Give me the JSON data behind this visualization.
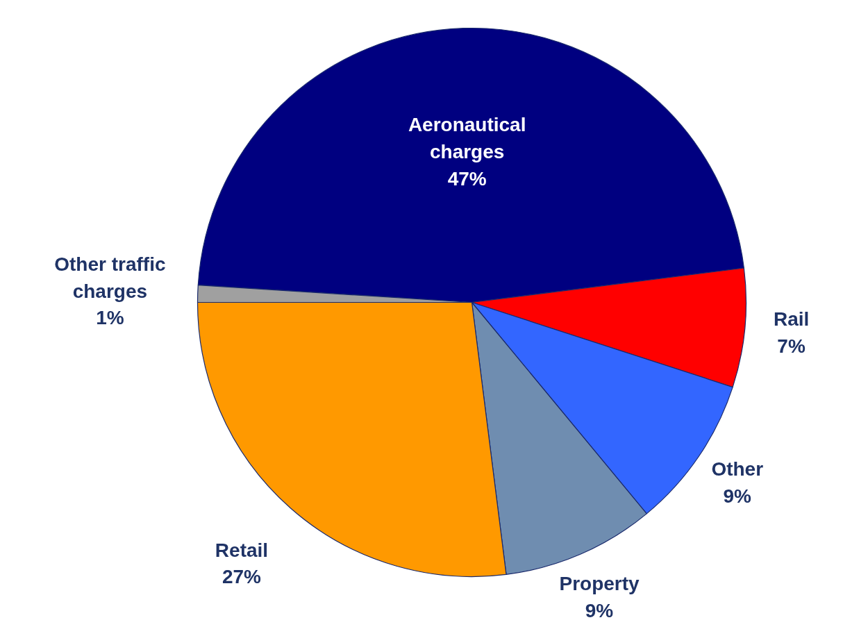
{
  "chart_data": {
    "type": "pie",
    "categories": [
      "Aeronautical charges",
      "Rail",
      "Other",
      "Property",
      "Retail",
      "Other traffic charges"
    ],
    "values": [
      47,
      7,
      9,
      9,
      27,
      1
    ],
    "colors": [
      "#000080",
      "#ff0000",
      "#3366ff",
      "#6f8db0",
      "#ff9900",
      "#a0a0a0"
    ],
    "value_labels": [
      "47%",
      "7%",
      "9%",
      "9%",
      "27%",
      "1%"
    ]
  }
}
